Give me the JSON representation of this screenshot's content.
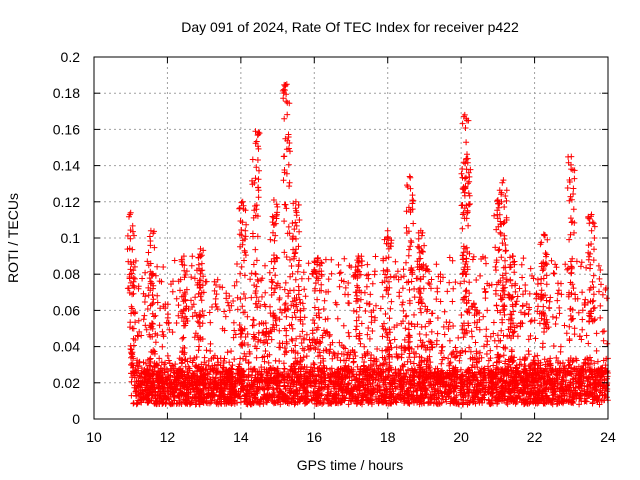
{
  "chart_data": {
    "type": "scatter",
    "title": "Day 091 of 2024, Rate Of TEC Index for receiver p422",
    "xlabel": "GPS time / hours",
    "ylabel": "ROTI / TECUs",
    "xlim": [
      10,
      24
    ],
    "ylim": [
      0,
      0.2
    ],
    "xticks": [
      10,
      12,
      14,
      16,
      18,
      20,
      22,
      24
    ],
    "xtick_labels": [
      "10",
      "12",
      "14",
      "16",
      "18",
      "20",
      "22",
      "24"
    ],
    "yticks": [
      0,
      0.02,
      0.04,
      0.06,
      0.08,
      0.1,
      0.12,
      0.14,
      0.16,
      0.18,
      0.2
    ],
    "ytick_labels": [
      "0",
      "0.02",
      "0.04",
      "0.06",
      "0.08",
      "0.1",
      "0.12",
      "0.14",
      "0.16",
      "0.18",
      "0.2"
    ],
    "grid": true,
    "marker": "+",
    "color": "#ff0000",
    "series_start_hour": 11.0,
    "series_end_hour": 24.0,
    "peaks": [
      {
        "x": 11.0,
        "y": 0.114
      },
      {
        "x": 11.55,
        "y": 0.104
      },
      {
        "x": 12.45,
        "y": 0.09
      },
      {
        "x": 12.9,
        "y": 0.094
      },
      {
        "x": 14.05,
        "y": 0.12
      },
      {
        "x": 14.4,
        "y": 0.159
      },
      {
        "x": 14.9,
        "y": 0.121
      },
      {
        "x": 15.25,
        "y": 0.185
      },
      {
        "x": 15.5,
        "y": 0.12
      },
      {
        "x": 16.1,
        "y": 0.089
      },
      {
        "x": 17.2,
        "y": 0.09
      },
      {
        "x": 18.0,
        "y": 0.104
      },
      {
        "x": 18.6,
        "y": 0.134
      },
      {
        "x": 18.9,
        "y": 0.104
      },
      {
        "x": 20.1,
        "y": 0.168
      },
      {
        "x": 20.15,
        "y": 0.138
      },
      {
        "x": 21.0,
        "y": 0.121
      },
      {
        "x": 21.15,
        "y": 0.132
      },
      {
        "x": 21.4,
        "y": 0.09
      },
      {
        "x": 22.25,
        "y": 0.102
      },
      {
        "x": 23.0,
        "y": 0.145
      },
      {
        "x": 23.55,
        "y": 0.113
      }
    ]
  }
}
